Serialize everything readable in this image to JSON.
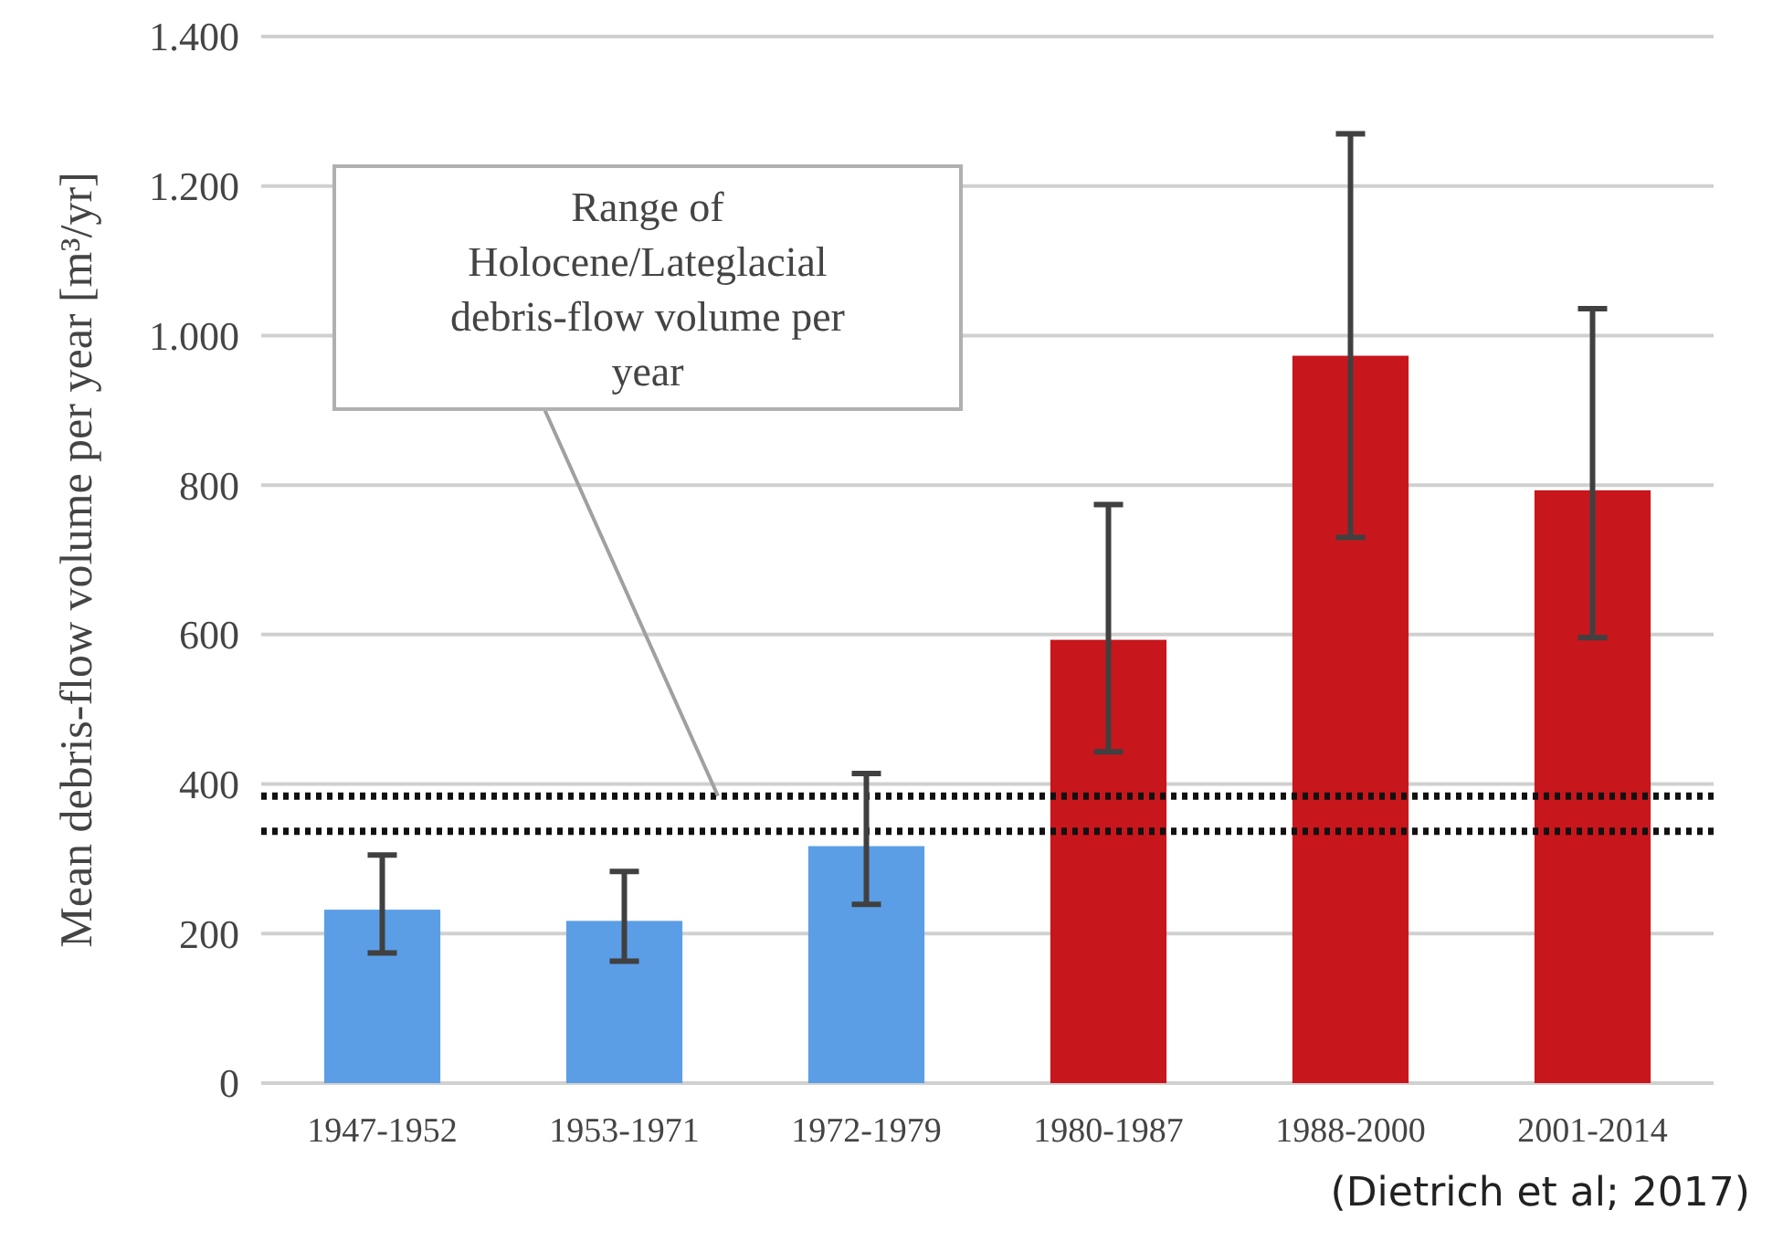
{
  "chart_data": {
    "type": "bar",
    "ylabel": "Mean debris-flow volume per year [m³/yr]",
    "categories": [
      "1947-1952",
      "1953-1971",
      "1972-1979",
      "1980-1987",
      "1988-2000",
      "2001-2014"
    ],
    "values": [
      232,
      217,
      317,
      593,
      973,
      793
    ],
    "colors": [
      "#5b9ee6",
      "#5b9ee6",
      "#5b9ee6",
      "#c8161d",
      "#c8161d",
      "#c8161d"
    ],
    "errors": [
      [
        174,
        305
      ],
      [
        163,
        283
      ],
      [
        239,
        414
      ],
      [
        443,
        774
      ],
      [
        730,
        1270
      ],
      [
        596,
        1036
      ]
    ],
    "ylim": [
      0,
      1400
    ],
    "yticks": [
      0,
      200,
      400,
      600,
      800,
      {
        "value": 1000,
        "label": "1.000"
      },
      {
        "value": 1200,
        "label": "1.200"
      },
      {
        "value": 1400,
        "label": "1.400"
      }
    ],
    "grid": "y",
    "ref_lines": [
      {
        "axis": "y",
        "value": 384,
        "label": "Range of Holocene/Lateglacial debris-flow volume per year",
        "line_style": "dotted",
        "color": "#111111"
      },
      {
        "axis": "y",
        "value": 337,
        "line_style": "dotted",
        "color": "#111111"
      }
    ],
    "annotations": [
      "(Dietrich et al; 2017)"
    ]
  }
}
